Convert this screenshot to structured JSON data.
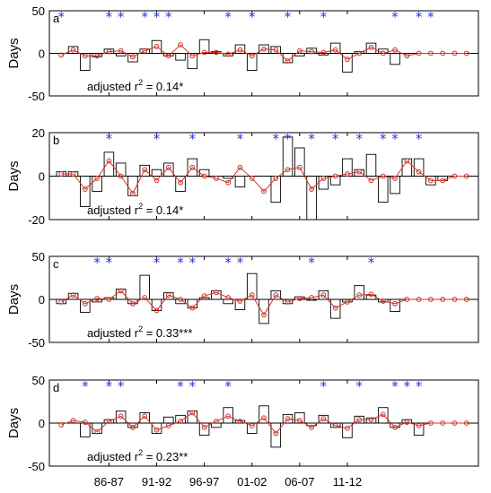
{
  "chart_data": [
    {
      "type": "bar",
      "panel_label": "a",
      "ylabel": "Days",
      "ylim": [
        -50,
        50
      ],
      "yticks": [
        -50,
        0,
        50
      ],
      "x": [
        1,
        2,
        3,
        4,
        5,
        6,
        7,
        8,
        9,
        10,
        11,
        12,
        13,
        14,
        15,
        16,
        17,
        18,
        19,
        20,
        21,
        22,
        23,
        24,
        25,
        26,
        27,
        28,
        29,
        30,
        31,
        32,
        33,
        34,
        35
      ],
      "bars": [
        0,
        8,
        -20,
        -4,
        5,
        -3,
        -10,
        5,
        15,
        -3,
        -8,
        -18,
        16,
        2,
        -3,
        10,
        -20,
        10,
        8,
        -11,
        -3,
        6,
        -2,
        12,
        -22,
        2,
        12,
        5,
        -13,
        0,
        0,
        0,
        0,
        0,
        0
      ],
      "fitted": [
        -2,
        4,
        -3,
        -3,
        2,
        3,
        -4,
        3,
        8,
        -3,
        10,
        -3,
        1,
        1,
        -1,
        4,
        -3,
        5,
        4,
        -9,
        3,
        2,
        1,
        4,
        -7,
        0,
        7,
        0,
        4,
        -3,
        0,
        0,
        0,
        0,
        0
      ],
      "stars": [
        1,
        5,
        6,
        8,
        9,
        10,
        15,
        17,
        20,
        23,
        29,
        31,
        32
      ],
      "annotation": {
        "text": "adjusted r",
        "sup": "2",
        "rest": " = 0.14*"
      }
    },
    {
      "type": "bar",
      "panel_label": "b",
      "ylabel": "Days",
      "ylim": [
        -20,
        20
      ],
      "yticks": [
        -20,
        0,
        20
      ],
      "x": [
        1,
        2,
        3,
        4,
        5,
        6,
        7,
        8,
        9,
        10,
        11,
        12,
        13,
        14,
        15,
        16,
        17,
        18,
        19,
        20,
        21,
        22,
        23,
        24,
        25,
        26,
        27,
        28,
        29,
        30,
        31,
        32,
        33,
        34,
        35
      ],
      "bars": [
        2,
        2,
        -14,
        -7,
        11,
        6,
        -9,
        5,
        3,
        6,
        -7,
        8,
        3,
        0,
        -1,
        -5,
        0,
        0,
        -12,
        18,
        13,
        -20,
        -6,
        -4,
        8,
        3,
        10,
        -12,
        -8,
        8,
        8,
        -4,
        -2,
        0,
        0
      ],
      "fitted": [
        1,
        1,
        -6,
        -1,
        7,
        0,
        -8,
        3,
        -2,
        4,
        -3,
        4,
        0,
        -1,
        -3,
        4,
        -1,
        -7,
        -1,
        3,
        4,
        -6,
        -1,
        0,
        1,
        2,
        -2,
        0,
        -1,
        7,
        2,
        -2,
        -2,
        0,
        0
      ],
      "stars": [
        5,
        9,
        12,
        16,
        19,
        20,
        22,
        24,
        26,
        28,
        29,
        31
      ],
      "annotation": {
        "text": "adjusted r",
        "sup": "2",
        "rest": " = 0.14*"
      }
    },
    {
      "type": "bar",
      "panel_label": "c",
      "ylabel": "Days",
      "ylim": [
        -50,
        50
      ],
      "yticks": [
        -50,
        0,
        50
      ],
      "x": [
        1,
        2,
        3,
        4,
        5,
        6,
        7,
        8,
        9,
        10,
        11,
        12,
        13,
        14,
        15,
        16,
        17,
        18,
        19,
        20,
        21,
        22,
        23,
        24,
        25,
        26,
        27,
        28,
        29,
        30,
        31,
        32,
        33,
        34,
        35
      ],
      "bars": [
        -5,
        7,
        -15,
        -3,
        2,
        12,
        -5,
        28,
        -13,
        8,
        -5,
        -10,
        2,
        10,
        -5,
        -12,
        30,
        -28,
        10,
        -5,
        3,
        -1,
        10,
        -22,
        -3,
        16,
        5,
        -3,
        -14,
        0,
        0,
        0,
        0,
        0,
        0
      ],
      "fitted": [
        -3,
        5,
        -5,
        1,
        0,
        10,
        -5,
        2,
        -13,
        5,
        0,
        -10,
        4,
        8,
        2,
        -2,
        5,
        -18,
        5,
        -3,
        1,
        2,
        5,
        -10,
        -3,
        5,
        6,
        -2,
        -5,
        0,
        0,
        0,
        0,
        0,
        0
      ],
      "stars": [
        4,
        5,
        9,
        11,
        12,
        15,
        16,
        22,
        27
      ],
      "annotation": {
        "text": "adjusted r",
        "sup": "2",
        "rest": " = 0.33***"
      }
    },
    {
      "type": "bar",
      "panel_label": "d",
      "ylabel": "Days",
      "ylim": [
        -50,
        50
      ],
      "yticks": [
        -50,
        0,
        50
      ],
      "x": [
        1,
        2,
        3,
        4,
        5,
        6,
        7,
        8,
        9,
        10,
        11,
        12,
        13,
        14,
        15,
        16,
        17,
        18,
        19,
        20,
        21,
        22,
        23,
        24,
        25,
        26,
        27,
        28,
        29,
        30,
        31,
        32,
        33,
        34,
        35
      ],
      "bars": [
        0,
        0,
        -16,
        -12,
        4,
        14,
        -5,
        12,
        -12,
        7,
        9,
        14,
        -14,
        -5,
        18,
        3,
        -12,
        20,
        -28,
        10,
        12,
        -3,
        9,
        -5,
        -17,
        8,
        6,
        18,
        -5,
        4,
        -14,
        0,
        0,
        0,
        0
      ],
      "fitted": [
        -2,
        3,
        1,
        -10,
        2,
        8,
        -5,
        8,
        -8,
        -3,
        2,
        12,
        -5,
        2,
        8,
        2,
        -3,
        6,
        -12,
        5,
        3,
        -5,
        5,
        -3,
        -6,
        4,
        4,
        10,
        -5,
        1,
        -3,
        0,
        0,
        0,
        0
      ],
      "stars": [
        3,
        5,
        6,
        11,
        12,
        15,
        23,
        26,
        29,
        30,
        31
      ],
      "annotation": {
        "text": "adjusted r",
        "sup": "2",
        "rest": " = 0.23**"
      }
    }
  ],
  "xaxis": {
    "ticks": [
      5,
      9,
      13,
      17,
      21,
      25
    ],
    "labels": [
      "86-87",
      "91-92",
      "96-97",
      "01-02",
      "06-07",
      "11-12"
    ]
  },
  "colors": {
    "bar_edge": "#000000",
    "fit_line": "#e0301e",
    "fit_marker": "#c5332a",
    "star": "#2233ee",
    "axis": "#000000"
  }
}
